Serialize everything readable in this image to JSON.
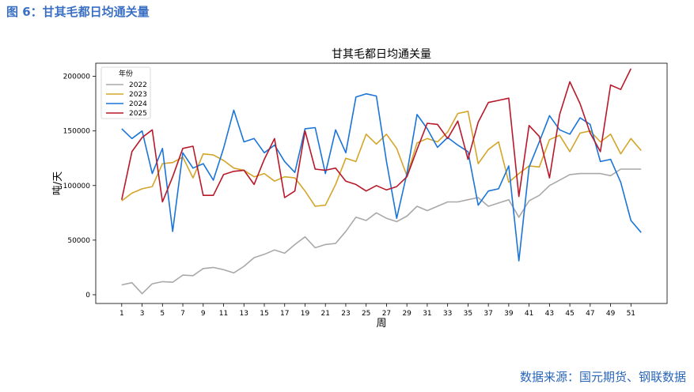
{
  "figure_caption": "图 6：甘其毛都日均通关量",
  "source_note": "数据来源：国元期货、钢联数据",
  "chart_data": {
    "type": "line",
    "title": "甘其毛都日均通关量",
    "xlabel": "周",
    "ylabel": "吨/天",
    "legend_title": "年份",
    "legend_position": "top-left",
    "grid": false,
    "xlim": [
      1,
      52
    ],
    "ylim": [
      -8000,
      212000
    ],
    "x_ticks": [
      1,
      3,
      5,
      7,
      9,
      11,
      13,
      15,
      17,
      19,
      21,
      23,
      25,
      27,
      29,
      31,
      33,
      35,
      37,
      39,
      41,
      43,
      45,
      47,
      49,
      51
    ],
    "y_ticks": [
      0,
      50000,
      100000,
      150000,
      200000
    ],
    "x": [
      1,
      2,
      3,
      4,
      5,
      6,
      7,
      8,
      9,
      10,
      11,
      12,
      13,
      14,
      15,
      16,
      17,
      18,
      19,
      20,
      21,
      22,
      23,
      24,
      25,
      26,
      27,
      28,
      29,
      30,
      31,
      32,
      33,
      34,
      35,
      36,
      37,
      38,
      39,
      40,
      41,
      42,
      43,
      44,
      45,
      46,
      47,
      48,
      49,
      50,
      51,
      52
    ],
    "series": [
      {
        "name": "2022",
        "color": "#a9a9a9",
        "values": [
          9000,
          11000,
          1000,
          10000,
          12000,
          11500,
          18000,
          17500,
          24000,
          25000,
          23000,
          20000,
          26000,
          34000,
          37000,
          41000,
          38000,
          46000,
          53000,
          43000,
          46000,
          47000,
          58000,
          71000,
          68000,
          75000,
          70000,
          67000,
          72000,
          81000,
          77000,
          81000,
          85000,
          85000,
          87000,
          89000,
          81000,
          84000,
          87000,
          71000,
          86000,
          91000,
          100000,
          105000,
          110000,
          111000,
          111000,
          111000,
          109000,
          115000,
          115000,
          115000
        ]
      },
      {
        "name": "2023",
        "color": "#d4a52a",
        "values": [
          86000,
          93000,
          97000,
          99000,
          120000,
          121000,
          126000,
          107000,
          129000,
          128000,
          123000,
          116000,
          114000,
          108000,
          111000,
          104000,
          108000,
          107000,
          95000,
          81000,
          82000,
          101000,
          125000,
          122000,
          147000,
          138000,
          147000,
          134000,
          109000,
          139000,
          143000,
          140000,
          149000,
          166000,
          168000,
          120000,
          133000,
          140000,
          103000,
          111000,
          118000,
          117000,
          142000,
          146000,
          131000,
          148000,
          150000,
          140000,
          147000,
          129000,
          143000,
          132000
        ]
      },
      {
        "name": "2024",
        "color": "#1a75d8",
        "values": [
          152000,
          143000,
          150000,
          111000,
          134000,
          58000,
          130000,
          116000,
          120000,
          105000,
          134000,
          169000,
          140000,
          143000,
          130000,
          137000,
          122000,
          112000,
          152000,
          153000,
          111000,
          151000,
          130000,
          181000,
          184000,
          182000,
          122000,
          70000,
          111000,
          165000,
          152000,
          135000,
          144000,
          137000,
          131000,
          82000,
          95000,
          97000,
          118000,
          31000,
          117000,
          140000,
          164000,
          151000,
          147000,
          162000,
          156000,
          122000,
          124000,
          103000,
          68000,
          57000
        ]
      },
      {
        "name": "2025",
        "color": "#b8192a",
        "values": [
          87000,
          131000,
          144000,
          151000,
          85000,
          108000,
          134000,
          136000,
          91000,
          91000,
          110000,
          113000,
          114000,
          101000,
          124000,
          143000,
          89000,
          95000,
          150000,
          115000,
          114000,
          116000,
          104000,
          101000,
          95000,
          100000,
          96000,
          99000,
          108000,
          133000,
          157000,
          156000,
          143000,
          159000,
          124000,
          158000,
          176000,
          178000,
          180000,
          90000,
          155000,
          145000,
          107000,
          165000,
          195000,
          175000,
          148000,
          131000,
          192000,
          188000,
          207000,
          null
        ]
      }
    ]
  }
}
